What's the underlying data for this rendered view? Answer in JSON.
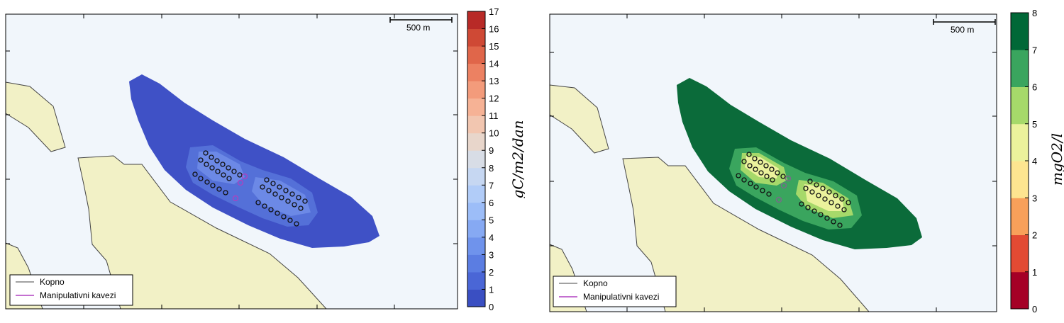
{
  "colors": {
    "sea": "#f1f6fb",
    "land": "#f2f1c6",
    "land_edge": "#444444",
    "cage_line": "#b040c0"
  },
  "left_map": {
    "scale_bar_label": "500 m",
    "legend": [
      {
        "label": "Kopno",
        "color": "#444444"
      },
      {
        "label": "Manipulativni kavezi",
        "color": "#b040c0"
      }
    ],
    "colorbar": {
      "title": "gC/m2/dan",
      "ticks": [
        "0",
        "1",
        "2",
        "3",
        "4",
        "5",
        "6",
        "7",
        "8",
        "9",
        "10",
        "11",
        "12",
        "13",
        "14",
        "15",
        "16",
        "17"
      ],
      "colors": [
        "#3a4fc2",
        "#4a66d6",
        "#5b7de2",
        "#6f93ec",
        "#86a9f3",
        "#9cbdf8",
        "#b1ccf8",
        "#c6d7f2",
        "#d8dde6",
        "#e8d6cb",
        "#f2c6b0",
        "#f6b295",
        "#f39b7b",
        "#ec8162",
        "#e0664a",
        "#cf4935",
        "#b82a27"
      ]
    }
  },
  "right_map": {
    "scale_bar_label": "500 m",
    "legend": [
      {
        "label": "Kopno",
        "color": "#444444"
      },
      {
        "label": "Manipulativni kavezi",
        "color": "#b040c0"
      }
    ],
    "colorbar": {
      "title": "mgO2/l",
      "ticks": [
        "0",
        "1",
        "2",
        "3",
        "4",
        "5",
        "6",
        "7",
        "8"
      ],
      "colors": [
        "#a50026",
        "#e24a33",
        "#f8a05a",
        "#fde590",
        "#ebf29c",
        "#a6d96a",
        "#3aa55e",
        "#006837"
      ]
    }
  }
}
